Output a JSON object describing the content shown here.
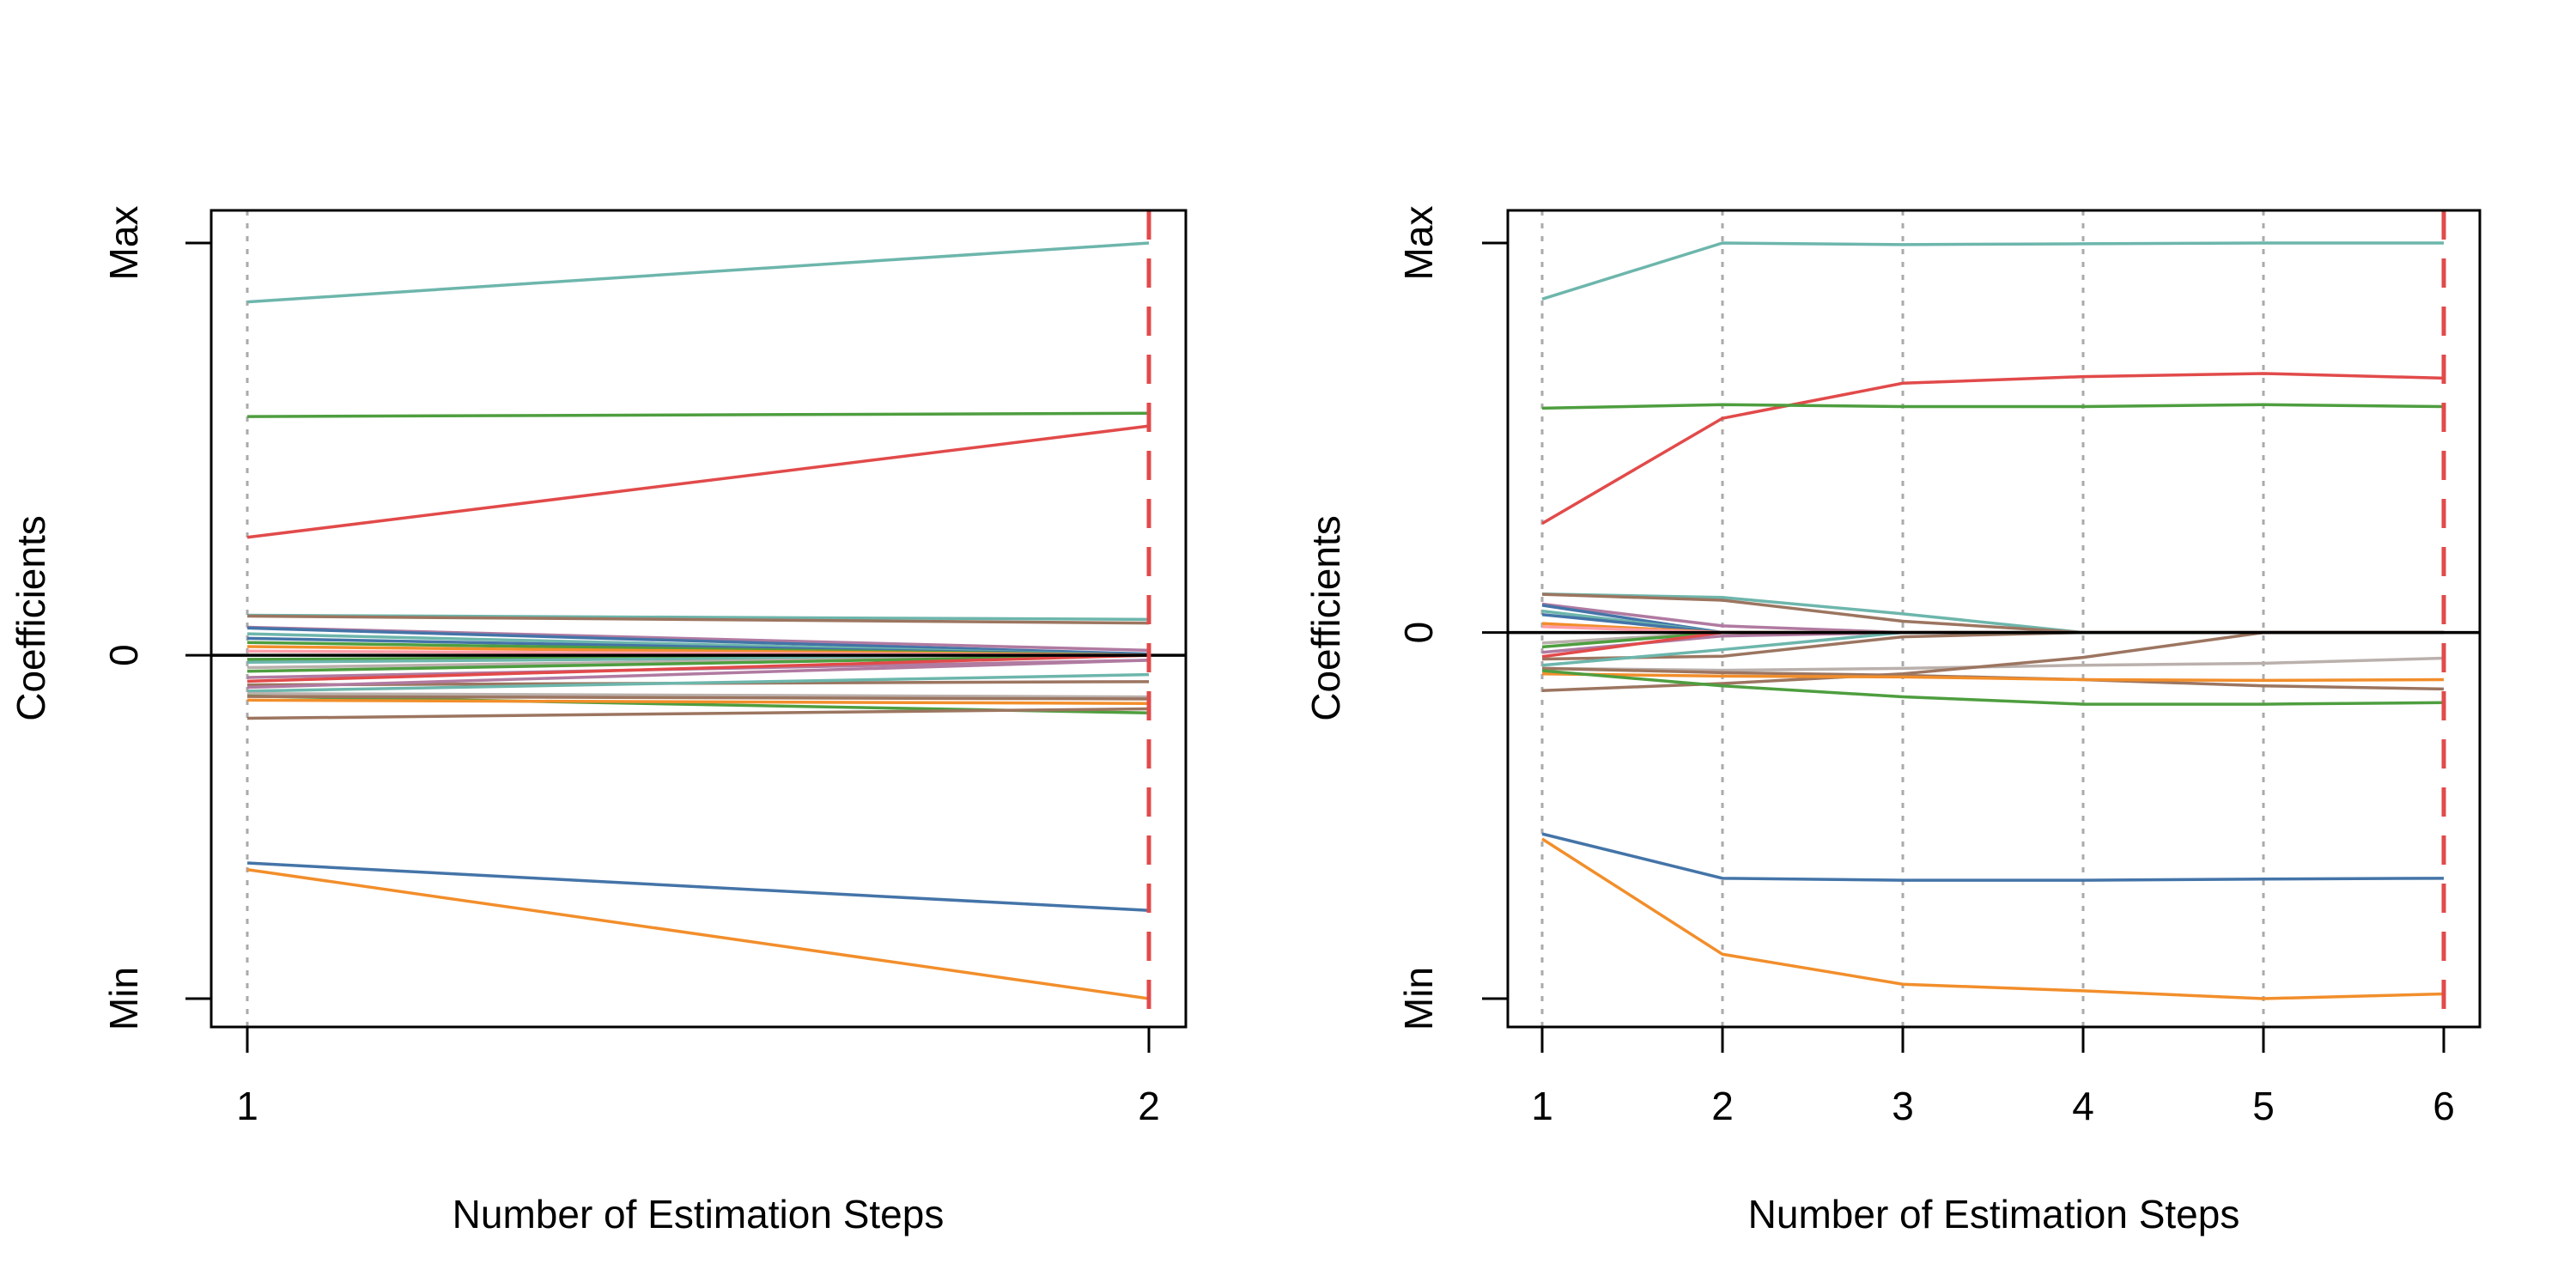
{
  "chart_data": [
    {
      "type": "line",
      "xlabel": "Number of Estimation Steps",
      "ylabel": "Coefficients",
      "x": [
        1,
        2
      ],
      "x_tick_labels": [
        "1",
        "2"
      ],
      "y_tick_labels": [
        "Max",
        "0",
        "Min"
      ],
      "ylim_relative": [
        -0.833,
        1.0
      ],
      "selected_step": 2,
      "grid": "vertical dotted at each step",
      "legend": "none",
      "series": [
        {
          "color": "#6db6ac",
          "values": [
            0.857,
            1.0
          ]
        },
        {
          "color": "#4e9e3f",
          "values": [
            0.579,
            0.587
          ]
        },
        {
          "color": "#e24a4a",
          "values": [
            0.286,
            0.556
          ]
        },
        {
          "color": "#4474a8",
          "values": [
            -0.504,
            -0.619
          ]
        },
        {
          "color": "#f28e2b",
          "values": [
            -0.52,
            -0.833
          ]
        },
        {
          "color": "#6db6ac",
          "values": [
            0.097,
            0.087
          ]
        },
        {
          "color": "#9c7560",
          "values": [
            0.095,
            0.078
          ]
        },
        {
          "color": "#b07aa1",
          "values": [
            0.068,
            0.012
          ]
        },
        {
          "color": "#4474a8",
          "values": [
            0.066,
            0.003
          ]
        },
        {
          "color": "#6db6ac",
          "values": [
            0.052,
            0
          ]
        },
        {
          "color": "#4474a8",
          "values": [
            0.041,
            0
          ]
        },
        {
          "color": "#4e9e3f",
          "values": [
            0.031,
            0
          ]
        },
        {
          "color": "#f28e2b",
          "values": [
            0.021,
            0
          ]
        },
        {
          "color": "#ff9da7",
          "values": [
            0.01,
            0
          ]
        },
        {
          "color": "#4e9e3f",
          "values": [
            -0.01,
            0
          ]
        },
        {
          "color": "#6db6ac",
          "values": [
            -0.017,
            0
          ]
        },
        {
          "color": "#bab0ac",
          "values": [
            -0.03,
            0
          ]
        },
        {
          "color": "#4e9e3f",
          "values": [
            -0.039,
            0
          ]
        },
        {
          "color": "#b07aa1",
          "values": [
            -0.054,
            -0.012
          ]
        },
        {
          "color": "#e24a4a",
          "values": [
            -0.063,
            0
          ]
        },
        {
          "color": "#9c7560",
          "values": [
            -0.072,
            -0.064
          ]
        },
        {
          "color": "#b07aa1",
          "values": [
            -0.078,
            -0.012
          ]
        },
        {
          "color": "#6db6ac",
          "values": [
            -0.087,
            -0.047
          ]
        },
        {
          "color": "#bab0ac",
          "values": [
            -0.093,
            -0.101
          ]
        },
        {
          "color": "#4e9e3f",
          "values": [
            -0.099,
            -0.14
          ]
        },
        {
          "color": "#9c7560",
          "values": [
            -0.1,
            -0.106
          ]
        },
        {
          "color": "#f28e2b",
          "values": [
            -0.109,
            -0.117
          ]
        },
        {
          "color": "#9c7560",
          "values": [
            -0.153,
            -0.13
          ]
        }
      ]
    },
    {
      "type": "line",
      "xlabel": "Number of Estimation Steps",
      "ylabel": "Coefficients",
      "x": [
        1,
        2,
        3,
        4,
        5,
        6
      ],
      "x_tick_labels": [
        "1",
        "2",
        "3",
        "4",
        "5",
        "6"
      ],
      "y_tick_labels": [
        "Max",
        "0",
        "Min"
      ],
      "ylim_relative": [
        -0.94,
        1.0
      ],
      "selected_step": 6,
      "grid": "vertical dotted at each step",
      "legend": "none",
      "series": [
        {
          "color": "#6db6ac",
          "values": [
            0.856,
            1.0,
            0.996,
            0.998,
            1.0,
            1.0
          ]
        },
        {
          "color": "#e24a4a",
          "values": [
            0.28,
            0.55,
            0.64,
            0.657,
            0.665,
            0.653
          ]
        },
        {
          "color": "#4e9e3f",
          "values": [
            0.576,
            0.585,
            0.58,
            0.58,
            0.585,
            0.58
          ]
        },
        {
          "color": "#4474a8",
          "values": [
            -0.517,
            -0.631,
            -0.636,
            -0.636,
            -0.633,
            -0.631
          ]
        },
        {
          "color": "#f28e2b",
          "values": [
            -0.53,
            -0.826,
            -0.903,
            -0.92,
            -0.94,
            -0.928
          ]
        },
        {
          "color": "#6db6ac",
          "values": [
            0.099,
            0.09,
            0.048,
            0,
            0,
            0
          ]
        },
        {
          "color": "#9c7560",
          "values": [
            0.098,
            0.083,
            0.029,
            0,
            0,
            0
          ]
        },
        {
          "color": "#b07aa1",
          "values": [
            0.073,
            0.017,
            0,
            0,
            0,
            0
          ]
        },
        {
          "color": "#4474a8",
          "values": [
            0.07,
            0,
            0,
            0,
            0,
            0
          ]
        },
        {
          "color": "#6db6ac",
          "values": [
            0.055,
            0,
            0,
            0,
            0,
            0
          ]
        },
        {
          "color": "#4474a8",
          "values": [
            0.046,
            0,
            0,
            0,
            0,
            0
          ]
        },
        {
          "color": "#f28e2b",
          "values": [
            0.023,
            0,
            0,
            0,
            0,
            0
          ]
        },
        {
          "color": "#ff9da7",
          "values": [
            0.015,
            0,
            0,
            0,
            0,
            0
          ]
        },
        {
          "color": "#bab0ac",
          "values": [
            -0.027,
            0,
            0,
            0,
            0,
            0
          ]
        },
        {
          "color": "#4e9e3f",
          "values": [
            -0.037,
            0,
            0,
            0,
            0,
            0
          ]
        },
        {
          "color": "#b07aa1",
          "values": [
            -0.051,
            -0.009,
            0,
            0,
            0,
            0
          ]
        },
        {
          "color": "#e24a4a",
          "values": [
            -0.062,
            0,
            0,
            0,
            0,
            0
          ]
        },
        {
          "color": "#9c7560",
          "values": [
            -0.068,
            -0.061,
            -0.011,
            0,
            0,
            0
          ]
        },
        {
          "color": "#6db6ac",
          "values": [
            -0.084,
            -0.044,
            0,
            0,
            0,
            0
          ]
        },
        {
          "color": "#bab0ac",
          "values": [
            -0.092,
            -0.097,
            -0.092,
            -0.084,
            -0.079,
            -0.066
          ]
        },
        {
          "color": "#9c7560",
          "values": [
            -0.149,
            -0.131,
            -0.106,
            -0.064,
            0,
            0
          ]
        },
        {
          "color": "#9c7560",
          "values": [
            -0.092,
            -0.103,
            -0.11,
            -0.121,
            -0.137,
            -0.145
          ]
        },
        {
          "color": "#f28e2b",
          "values": [
            -0.106,
            -0.112,
            -0.114,
            -0.121,
            -0.123,
            -0.121
          ]
        },
        {
          "color": "#4e9e3f",
          "values": [
            -0.098,
            -0.137,
            -0.165,
            -0.184,
            -0.184,
            -0.18
          ]
        }
      ]
    }
  ]
}
